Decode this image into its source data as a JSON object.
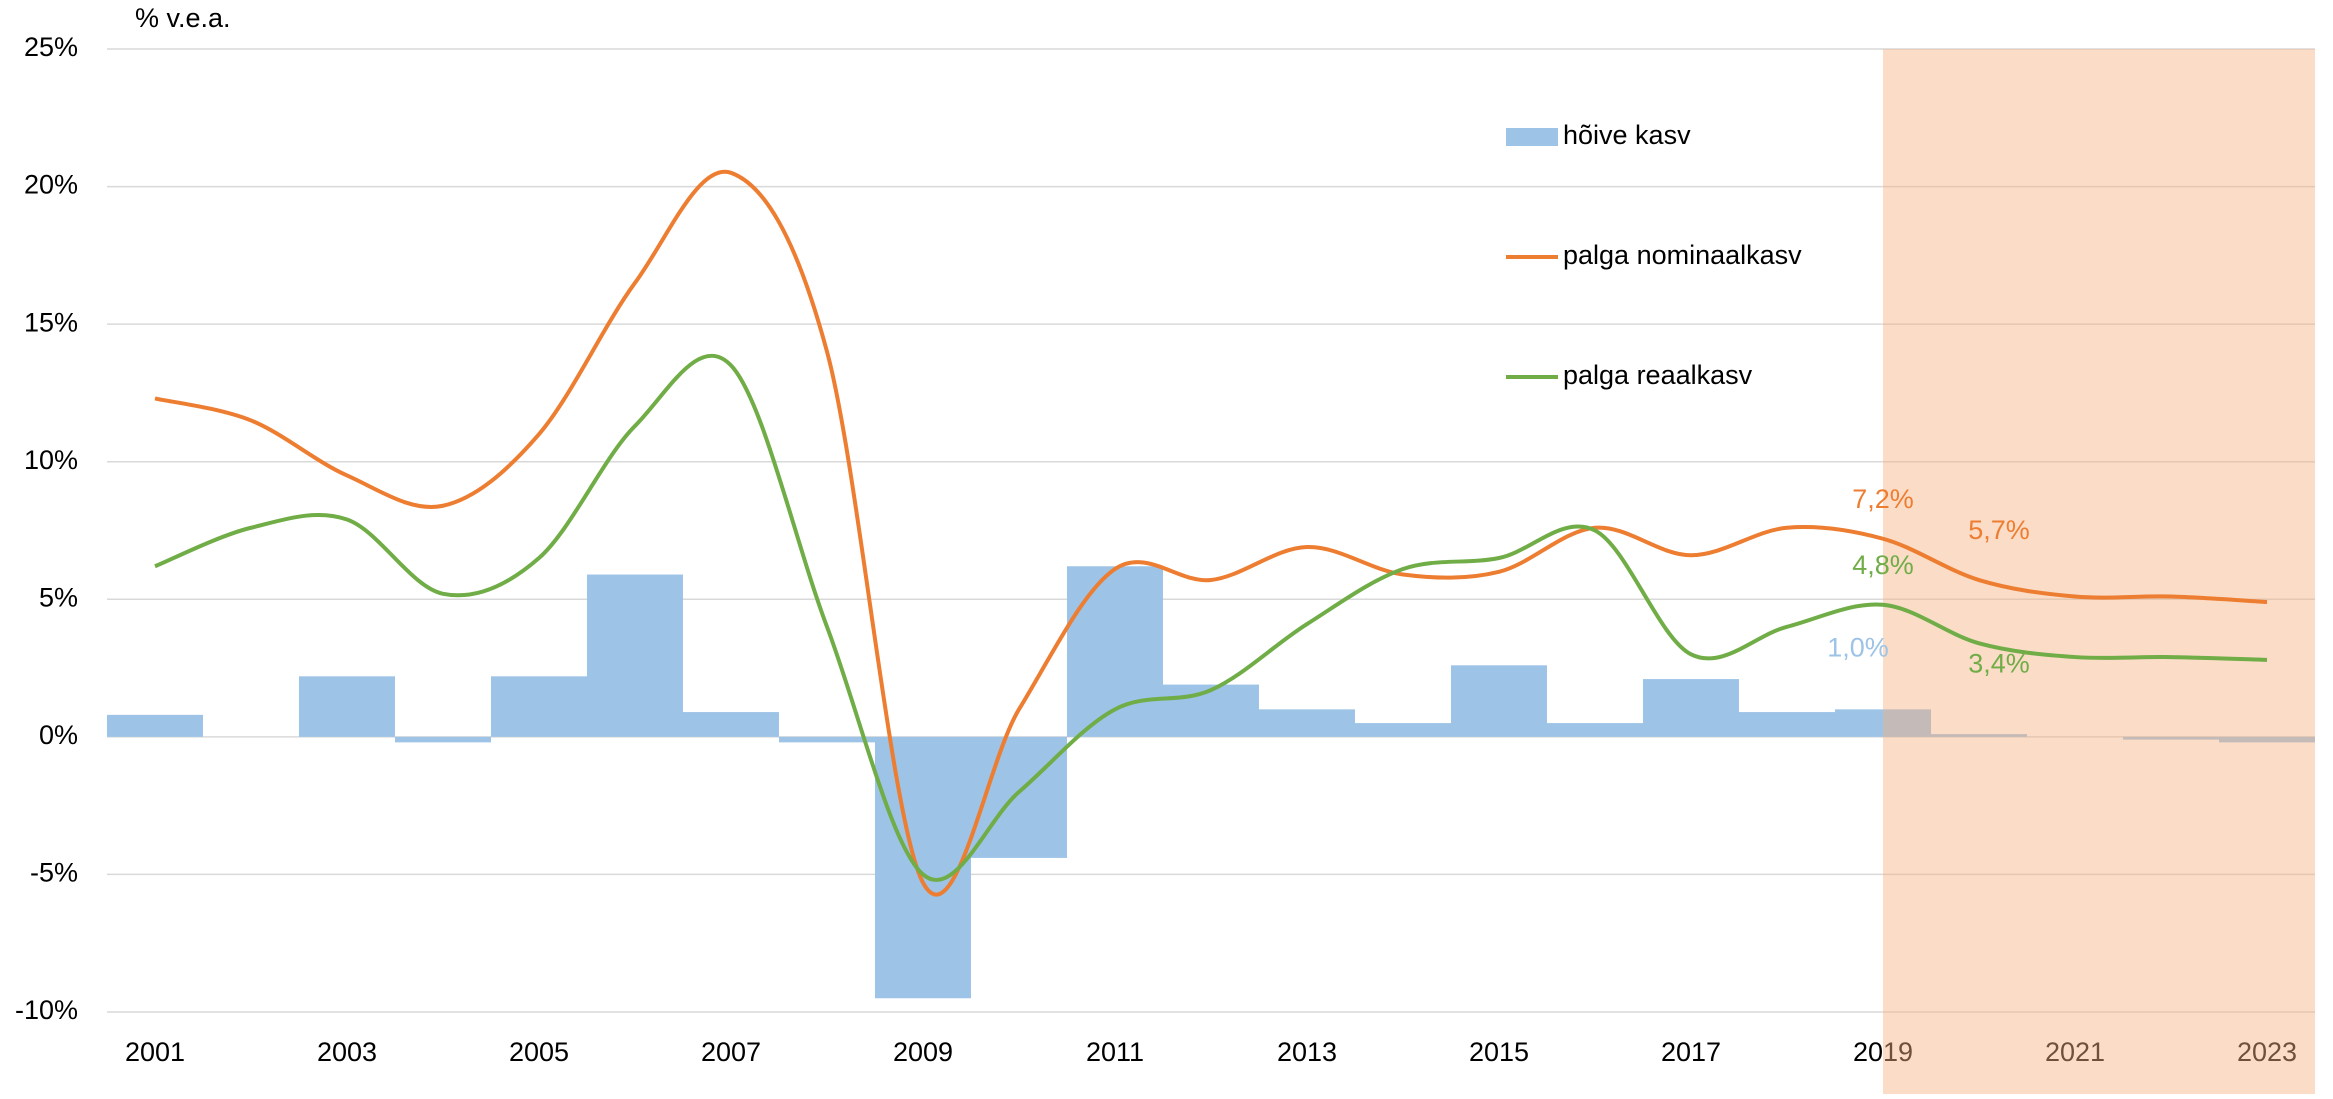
{
  "chart_data": {
    "type": "bar-line",
    "y_axis_label": "% v.e.a.",
    "categories": [
      "2001",
      null,
      "2003",
      null,
      "2005",
      null,
      "2007",
      null,
      "2009",
      null,
      "2011",
      null,
      "2013",
      null,
      "2015",
      null,
      "2017",
      null,
      "2019",
      null,
      "2021",
      null,
      "2023"
    ],
    "series": [
      {
        "name": "hõive kasv",
        "type": "bar",
        "color": "#9dc3e6",
        "values": [
          0.8,
          0,
          2.2,
          -0.2,
          2.2,
          5.9,
          0.9,
          -0.2,
          -9.5,
          -4.4,
          6.2,
          1.9,
          1.0,
          0.5,
          2.6,
          0.5,
          2.1,
          0.9,
          1.0,
          0.1,
          0.0,
          -0.1,
          -0.2
        ],
        "value_labels": [
          null,
          null,
          null,
          null,
          null,
          null,
          null,
          null,
          null,
          null,
          null,
          null,
          null,
          null,
          null,
          null,
          null,
          null,
          "1,0%",
          null,
          null,
          null,
          null
        ]
      },
      {
        "name": "palga nominaalkasv",
        "type": "line",
        "color": "#ed7d31",
        "values": [
          12.3,
          11.5,
          9.5,
          8.4,
          11.0,
          16.5,
          20.5,
          14.0,
          -5.3,
          1.0,
          6.1,
          5.7,
          6.9,
          5.9,
          6.0,
          7.6,
          6.6,
          7.6,
          7.2,
          5.7,
          5.1,
          5.1,
          4.9
        ],
        "value_labels": [
          null,
          null,
          null,
          null,
          null,
          null,
          null,
          null,
          null,
          null,
          null,
          null,
          null,
          null,
          null,
          null,
          null,
          null,
          "7,2%",
          "5,7%",
          null,
          null,
          null
        ]
      },
      {
        "name": "palga reaalkasv",
        "type": "line",
        "color": "#70ad47",
        "values": [
          6.2,
          7.6,
          7.9,
          5.2,
          6.5,
          11.3,
          13.5,
          4.0,
          -5.0,
          -2.0,
          1.0,
          1.7,
          4.1,
          6.1,
          6.5,
          7.5,
          3.0,
          4.0,
          4.8,
          3.4,
          2.9,
          2.9,
          2.8
        ],
        "value_labels": [
          null,
          null,
          null,
          null,
          null,
          null,
          null,
          null,
          null,
          null,
          null,
          null,
          null,
          null,
          null,
          null,
          null,
          null,
          "4,8%",
          "3,4%",
          null,
          null,
          null
        ]
      }
    ],
    "ylim": [
      -10,
      25
    ],
    "yticks": [
      {
        "value": -10,
        "label": "-10%"
      },
      {
        "value": -5,
        "label": "-5%"
      },
      {
        "value": 0,
        "label": "0%"
      },
      {
        "value": 5,
        "label": "5%"
      },
      {
        "value": 10,
        "label": "10%"
      },
      {
        "value": 15,
        "label": "15%"
      },
      {
        "value": 20,
        "label": "20%"
      },
      {
        "value": 25,
        "label": "25%"
      }
    ],
    "grid": true,
    "legend": "top-right",
    "highlight_region": {
      "from": "2019",
      "color": "#f4b183"
    }
  }
}
